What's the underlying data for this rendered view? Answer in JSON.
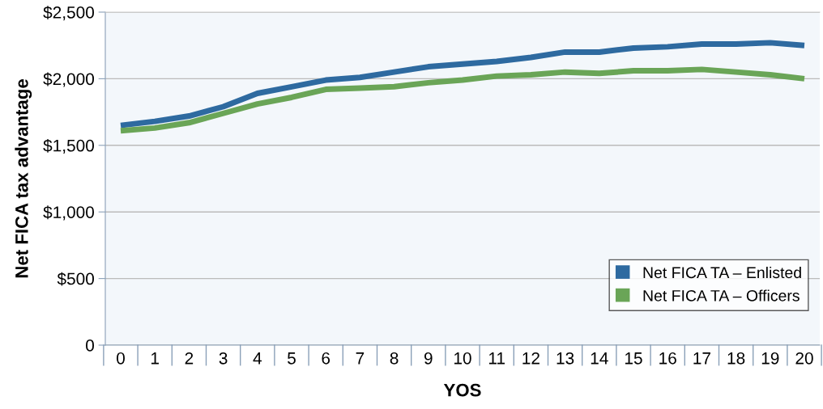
{
  "chart_data": {
    "type": "line",
    "xlabel": "YOS",
    "ylabel": "Net FICA tax advantage",
    "categories": [
      "0",
      "1",
      "2",
      "3",
      "4",
      "5",
      "6",
      "7",
      "8",
      "9",
      "10",
      "11",
      "12",
      "13",
      "14",
      "15",
      "16",
      "17",
      "18",
      "19",
      "20"
    ],
    "series": [
      {
        "name": "Net FICA TA – Enlisted",
        "color": "#2e6aa0",
        "values": [
          1650,
          1680,
          1720,
          1790,
          1890,
          1940,
          1990,
          2010,
          2050,
          2090,
          2110,
          2130,
          2160,
          2200,
          2200,
          2230,
          2240,
          2260,
          2260,
          2270,
          2250
        ]
      },
      {
        "name": "Net FICA TA – Officers",
        "color": "#6aa557",
        "values": [
          1610,
          1630,
          1670,
          1740,
          1810,
          1860,
          1920,
          1930,
          1940,
          1970,
          1990,
          2020,
          2030,
          2050,
          2040,
          2060,
          2060,
          2070,
          2050,
          2030,
          2000
        ]
      }
    ],
    "ylim": [
      0,
      2500
    ],
    "yticks": [
      {
        "value": 0,
        "label": "0"
      },
      {
        "value": 500,
        "label": "$500"
      },
      {
        "value": 1000,
        "label": "$1,000"
      },
      {
        "value": 1500,
        "label": "$1,500"
      },
      {
        "value": 2000,
        "label": "$2,000"
      },
      {
        "value": 2500,
        "label": "$2,500"
      }
    ],
    "grid": "y",
    "legend": "bottom right",
    "marker": "none",
    "line_style": "solid"
  }
}
